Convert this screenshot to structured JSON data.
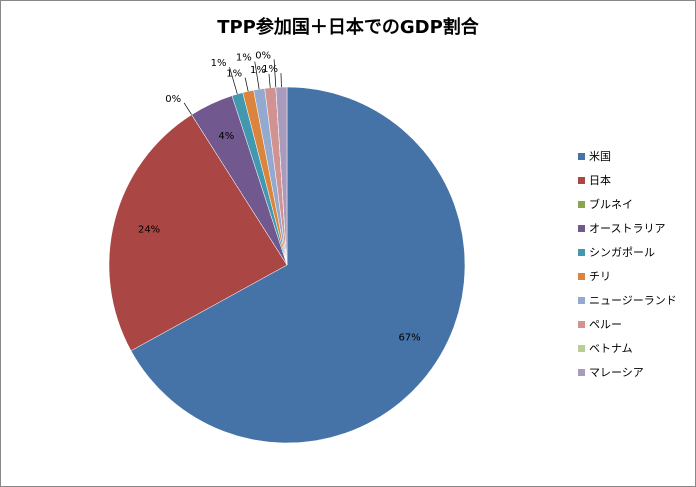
{
  "chart_data": {
    "type": "pie",
    "title": "TPP参加国＋日本でのGDP割合",
    "categories": [
      "米国",
      "日本",
      "ブルネイ",
      "オーストラリア",
      "シンガポール",
      "チリ",
      "ニュージーランド",
      "ペルー",
      "ベトナム",
      "マレーシア"
    ],
    "values": [
      67,
      24,
      0,
      4,
      1,
      1,
      1,
      1,
      0,
      1
    ],
    "value_labels": [
      "67%",
      "24%",
      "0%",
      "4%",
      "1%",
      "1%",
      "1%",
      "1%",
      "0%",
      "1%"
    ],
    "colors": [
      "#4572a7",
      "#aa4643",
      "#89a54e",
      "#71588f",
      "#4198af",
      "#db843d",
      "#93a9cf",
      "#d19392",
      "#b9cd96",
      "#a99bbd"
    ],
    "legend": "right"
  }
}
